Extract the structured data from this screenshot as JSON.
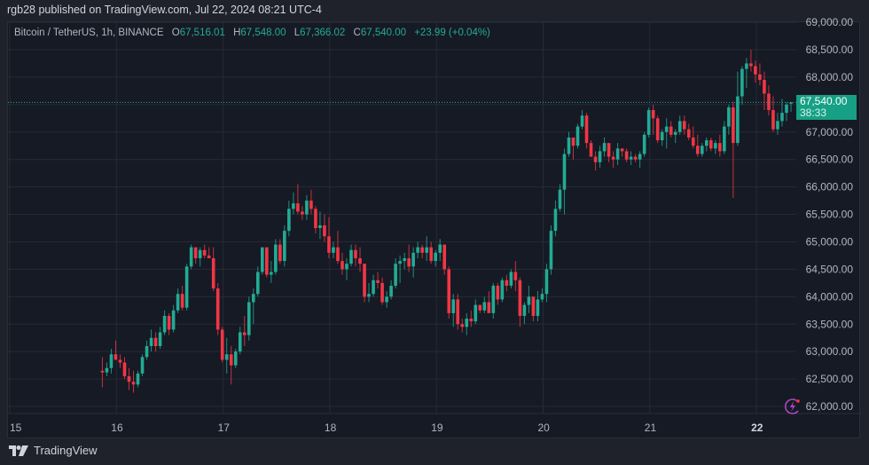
{
  "header": {
    "publisher_line": "rgb28 published on TradingView.com, Jul 22, 2024 08:21 UTC-4"
  },
  "legend": {
    "symbol": "Bitcoin / TetherUS, 1h, BINANCE",
    "open_label": "O",
    "open": "67,516.01",
    "high_label": "H",
    "high": "67,548.00",
    "low_label": "L",
    "low": "67,366.02",
    "close_label": "C",
    "close": "67,540.00",
    "change": "+23.99 (+0.04%)"
  },
  "price_tag": {
    "price": "67,540.00",
    "countdown": "38:33"
  },
  "footer": {
    "brand": "TradingView"
  },
  "colors": {
    "up": "#22ab94",
    "down": "#f23645",
    "grid": "#262a35",
    "axis_text": "#b2b5be",
    "tag": "#16a085"
  },
  "chart_data": {
    "type": "candlestick",
    "title": "Bitcoin / TetherUS, 1h, BINANCE",
    "xlabel": "",
    "ylabel": "",
    "x_ticks": [
      "15",
      "16",
      "17",
      "18",
      "19",
      "20",
      "21",
      "22"
    ],
    "y_ticks": [
      "69,000.00",
      "68,500.00",
      "68,000.00",
      "67,500.00",
      "67,000.00",
      "66,500.00",
      "66,000.00",
      "65,500.00",
      "65,000.00",
      "64,500.00",
      "64,000.00",
      "63,500.00",
      "63,000.00",
      "62,500.00",
      "62,000.00"
    ],
    "ylim": [
      61900,
      69050
    ],
    "grid": true,
    "last_price": 67540.0,
    "candles": [
      [
        62650,
        62900,
        62350,
        62620
      ],
      [
        62620,
        62800,
        62550,
        62700
      ],
      [
        62700,
        63050,
        62600,
        62950
      ],
      [
        62950,
        63200,
        62900,
        62850
      ],
      [
        62850,
        62950,
        62700,
        62800
      ],
      [
        62800,
        62900,
        62500,
        62550
      ],
      [
        62550,
        62700,
        62300,
        62450
      ],
      [
        62450,
        62650,
        62250,
        62400
      ],
      [
        62400,
        62650,
        62350,
        62600
      ],
      [
        62600,
        62950,
        62550,
        62900
      ],
      [
        62900,
        63200,
        62850,
        63100
      ],
      [
        63100,
        63400,
        63000,
        63250
      ],
      [
        63250,
        63350,
        63000,
        63100
      ],
      [
        63100,
        63450,
        63050,
        63350
      ],
      [
        63350,
        63750,
        63300,
        63650
      ],
      [
        63650,
        63700,
        63300,
        63400
      ],
      [
        63400,
        63850,
        63350,
        63750
      ],
      [
        63750,
        64150,
        63700,
        64050
      ],
      [
        64050,
        64200,
        63750,
        63800
      ],
      [
        63800,
        64600,
        63750,
        64550
      ],
      [
        64550,
        64950,
        64500,
        64900
      ],
      [
        64900,
        64850,
        64600,
        64700
      ],
      [
        64700,
        64900,
        64550,
        64850
      ],
      [
        64850,
        64950,
        64700,
        64750
      ],
      [
        64750,
        64900,
        64700,
        64700
      ],
      [
        64700,
        64900,
        64100,
        64150
      ],
      [
        64150,
        64250,
        63300,
        63400
      ],
      [
        63400,
        63450,
        62800,
        62850
      ],
      [
        62850,
        63250,
        62600,
        62950
      ],
      [
        62950,
        63100,
        62400,
        62750
      ],
      [
        62750,
        63050,
        62700,
        63000
      ],
      [
        63000,
        63450,
        62950,
        63350
      ],
      [
        63350,
        63650,
        63100,
        63300
      ],
      [
        63300,
        64000,
        63200,
        63900
      ],
      [
        63900,
        64150,
        63500,
        64050
      ],
      [
        64050,
        64550,
        64000,
        64450
      ],
      [
        64450,
        64800,
        64400,
        64900
      ],
      [
        64900,
        64850,
        64350,
        64400
      ],
      [
        64400,
        64650,
        64250,
        64450
      ],
      [
        64450,
        65050,
        64400,
        64950
      ],
      [
        64950,
        65050,
        64600,
        64650
      ],
      [
        64650,
        65300,
        64550,
        65200
      ],
      [
        65200,
        65750,
        65100,
        65600
      ],
      [
        65600,
        65900,
        65500,
        65700
      ],
      [
        65700,
        66050,
        65500,
        65550
      ],
      [
        65550,
        65650,
        65400,
        65500
      ],
      [
        65500,
        65850,
        65400,
        65750
      ],
      [
        65750,
        65950,
        65500,
        65600
      ],
      [
        65600,
        65650,
        65150,
        65250
      ],
      [
        65250,
        65550,
        65050,
        65300
      ],
      [
        65300,
        65500,
        65000,
        65100
      ],
      [
        65100,
        65450,
        64700,
        64800
      ],
      [
        64800,
        65000,
        64700,
        64900
      ],
      [
        64900,
        65200,
        64600,
        64650
      ],
      [
        64650,
        64800,
        64400,
        64500
      ],
      [
        64500,
        64700,
        64300,
        64600
      ],
      [
        64600,
        64950,
        64550,
        64850
      ],
      [
        64850,
        64950,
        64550,
        64700
      ],
      [
        64700,
        64900,
        64450,
        64600
      ],
      [
        64600,
        64600,
        63900,
        64000
      ],
      [
        64000,
        64250,
        63900,
        64050
      ],
      [
        64050,
        64400,
        64000,
        64300
      ],
      [
        64300,
        64450,
        64150,
        64250
      ],
      [
        64250,
        64350,
        63850,
        63900
      ],
      [
        63900,
        64100,
        63800,
        64000
      ],
      [
        64000,
        64300,
        63950,
        64200
      ],
      [
        64200,
        64700,
        64150,
        64600
      ],
      [
        64600,
        64750,
        64250,
        64650
      ],
      [
        64650,
        64800,
        64500,
        64700
      ],
      [
        64700,
        64950,
        64450,
        64550
      ],
      [
        64550,
        64900,
        64350,
        64800
      ],
      [
        64800,
        65000,
        64700,
        64900
      ],
      [
        64900,
        64950,
        64700,
        64800
      ],
      [
        64800,
        65100,
        64650,
        64900
      ],
      [
        64900,
        65000,
        64600,
        64650
      ],
      [
        64650,
        64850,
        64550,
        64800
      ],
      [
        64800,
        65050,
        64650,
        64950
      ],
      [
        64950,
        64900,
        64400,
        64500
      ],
      [
        64500,
        64550,
        63600,
        63700
      ],
      [
        63700,
        64050,
        63450,
        63950
      ],
      [
        63950,
        64050,
        63400,
        63500
      ],
      [
        63500,
        63600,
        63350,
        63450
      ],
      [
        63450,
        63700,
        63300,
        63600
      ],
      [
        63600,
        63750,
        63450,
        63550
      ],
      [
        63550,
        63950,
        63500,
        63850
      ],
      [
        63850,
        63800,
        63700,
        63750
      ],
      [
        63750,
        64000,
        63700,
        63900
      ],
      [
        63900,
        64100,
        63750,
        63700
      ],
      [
        63700,
        64250,
        63600,
        64200
      ],
      [
        64200,
        64250,
        63850,
        63950
      ],
      [
        63950,
        64350,
        63900,
        64300
      ],
      [
        64300,
        64400,
        64100,
        64200
      ],
      [
        64200,
        64500,
        64150,
        64450
      ],
      [
        64450,
        64650,
        64100,
        64300
      ],
      [
        64300,
        64350,
        63450,
        63650
      ],
      [
        63650,
        63900,
        63500,
        63850
      ],
      [
        63850,
        64200,
        63700,
        64000
      ],
      [
        64000,
        63950,
        63550,
        63650
      ],
      [
        63650,
        64100,
        63550,
        63950
      ],
      [
        63950,
        64150,
        63900,
        64050
      ],
      [
        64050,
        64600,
        63900,
        64500
      ],
      [
        64500,
        65300,
        64400,
        65200
      ],
      [
        65200,
        65750,
        65100,
        65600
      ],
      [
        65600,
        66050,
        65550,
        65950
      ],
      [
        65950,
        66700,
        65500,
        66600
      ],
      [
        66600,
        67000,
        66550,
        66900
      ],
      [
        66900,
        66850,
        66500,
        66750
      ],
      [
        66750,
        67150,
        66700,
        67100
      ],
      [
        67100,
        67400,
        67050,
        67300
      ],
      [
        67300,
        67350,
        66700,
        66800
      ],
      [
        66800,
        66850,
        66550,
        66550
      ],
      [
        66550,
        66650,
        66300,
        66450
      ],
      [
        66450,
        66750,
        66350,
        66650
      ],
      [
        66650,
        66900,
        66550,
        66800
      ],
      [
        66800,
        66750,
        66450,
        66550
      ],
      [
        66550,
        66650,
        66350,
        66500
      ],
      [
        66500,
        66800,
        66400,
        66700
      ],
      [
        66700,
        66700,
        66550,
        66650
      ],
      [
        66650,
        66700,
        66450,
        66500
      ],
      [
        66500,
        66650,
        66400,
        66550
      ],
      [
        66550,
        66600,
        66450,
        66500
      ],
      [
        66500,
        66650,
        66350,
        66600
      ],
      [
        66600,
        67000,
        66550,
        66950
      ],
      [
        66950,
        67450,
        66900,
        67400
      ],
      [
        67400,
        67500,
        66950,
        67250
      ],
      [
        67250,
        67300,
        66800,
        66850
      ],
      [
        66850,
        67050,
        66750,
        67000
      ],
      [
        67000,
        67250,
        66700,
        67100
      ],
      [
        67100,
        67200,
        66900,
        66950
      ],
      [
        66950,
        67050,
        66800,
        67000
      ],
      [
        67000,
        67300,
        66950,
        67200
      ],
      [
        67200,
        67300,
        66950,
        67050
      ],
      [
        67050,
        67150,
        66850,
        66900
      ],
      [
        66900,
        67100,
        66700,
        66750
      ],
      [
        66750,
        66950,
        66550,
        66600
      ],
      [
        66600,
        66800,
        66550,
        66750
      ],
      [
        66750,
        66900,
        66650,
        66850
      ],
      [
        66850,
        66900,
        66650,
        66700
      ],
      [
        66700,
        66850,
        66600,
        66800
      ],
      [
        66800,
        66950,
        66550,
        66650
      ],
      [
        66650,
        67200,
        66600,
        67100
      ],
      [
        67100,
        67500,
        66950,
        67450
      ],
      [
        67450,
        67550,
        65800,
        66800
      ],
      [
        66800,
        68100,
        66750,
        67650
      ],
      [
        67650,
        68200,
        67500,
        68150
      ],
      [
        68150,
        68350,
        67800,
        68250
      ],
      [
        68250,
        68500,
        68100,
        68200
      ],
      [
        68200,
        68300,
        67900,
        68050
      ],
      [
        68050,
        68250,
        67850,
        67950
      ],
      [
        67950,
        68100,
        67400,
        67700
      ],
      [
        67700,
        67850,
        67300,
        67400
      ],
      [
        67400,
        67650,
        67000,
        67050
      ],
      [
        67050,
        67350,
        66950,
        67200
      ],
      [
        67200,
        67600,
        67100,
        67350
      ],
      [
        67350,
        67550,
        67200,
        67500
      ],
      [
        67516.01,
        67548,
        67366.02,
        67540
      ]
    ]
  }
}
